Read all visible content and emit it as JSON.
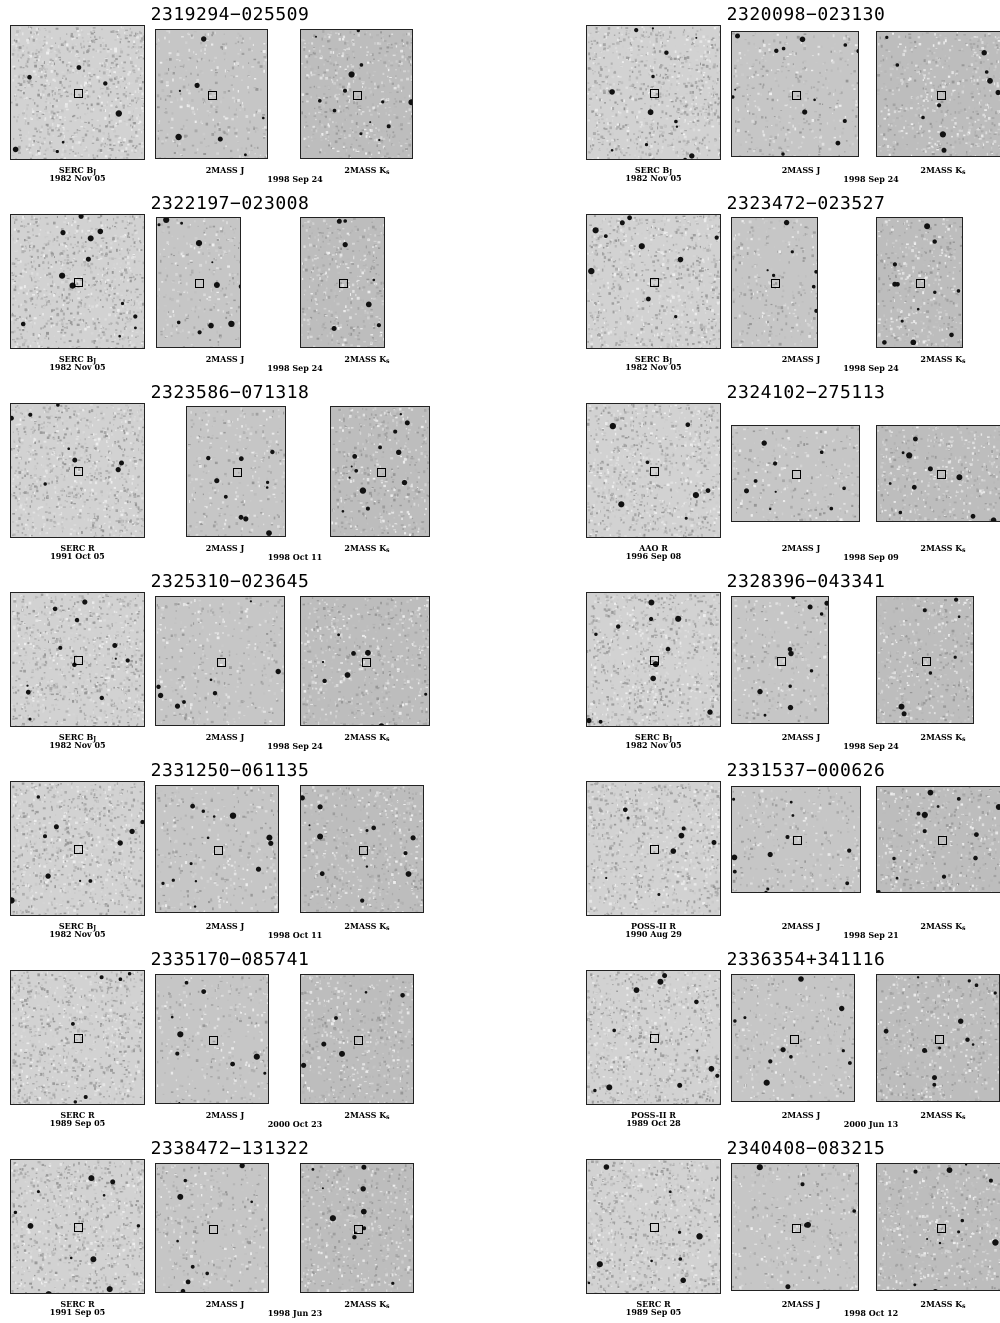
{
  "panels": [
    {
      "title": "2319294−025509",
      "dss_survey": "SERC B",
      "dss_sub": "J",
      "dss_date": "1982 Nov 05",
      "j_label": "2MASS J",
      "k_label": "2MASS K",
      "k_sub": "s",
      "tmass_date": "1998 Sep 24"
    },
    {
      "title": "2320098−023130",
      "dss_survey": "SERC B",
      "dss_sub": "J",
      "dss_date": "1982 Nov 05",
      "j_label": "2MASS J",
      "k_label": "2MASS K",
      "k_sub": "s",
      "tmass_date": "1998 Sep 24"
    },
    {
      "title": "2322197−023008",
      "dss_survey": "SERC B",
      "dss_sub": "J",
      "dss_date": "1982 Nov 05",
      "j_label": "2MASS J",
      "k_label": "2MASS K",
      "k_sub": "s",
      "tmass_date": "1998 Sep 24"
    },
    {
      "title": "2323472−023527",
      "dss_survey": "SERC B",
      "dss_sub": "J",
      "dss_date": "1982 Nov 05",
      "j_label": "2MASS J",
      "k_label": "2MASS K",
      "k_sub": "s",
      "tmass_date": "1998 Sep 24"
    },
    {
      "title": "2323586−071318",
      "dss_survey": "SERC R",
      "dss_sub": "",
      "dss_date": "1991 Oct 05",
      "j_label": "2MASS J",
      "k_label": "2MASS K",
      "k_sub": "s",
      "tmass_date": "1998 Oct 11"
    },
    {
      "title": "2324102−275113",
      "dss_survey": "AAO R",
      "dss_sub": "",
      "dss_date": "1996 Sep 08",
      "j_label": "2MASS J",
      "k_label": "2MASS K",
      "k_sub": "s",
      "tmass_date": "1998 Sep 09"
    },
    {
      "title": "2325310−023645",
      "dss_survey": "SERC B",
      "dss_sub": "J",
      "dss_date": "1982 Nov 05",
      "j_label": "2MASS J",
      "k_label": "2MASS K",
      "k_sub": "s",
      "tmass_date": "1998 Sep 24"
    },
    {
      "title": "2328396−043341",
      "dss_survey": "SERC B",
      "dss_sub": "J",
      "dss_date": "1982 Nov 05",
      "j_label": "2MASS J",
      "k_label": "2MASS K",
      "k_sub": "s",
      "tmass_date": "1998 Sep 24"
    },
    {
      "title": "2331250−061135",
      "dss_survey": "SERC B",
      "dss_sub": "J",
      "dss_date": "1982 Nov 05",
      "j_label": "2MASS J",
      "k_label": "2MASS K",
      "k_sub": "s",
      "tmass_date": "1998 Oct 11"
    },
    {
      "title": "2331537−000626",
      "dss_survey": "POSS-II R",
      "dss_sub": "",
      "dss_date": "1990 Aug 29",
      "j_label": "2MASS J",
      "k_label": "2MASS K",
      "k_sub": "s",
      "tmass_date": "1998 Sep 21"
    },
    {
      "title": "2335170−085741",
      "dss_survey": "SERC R",
      "dss_sub": "",
      "dss_date": "1989 Sep 05",
      "j_label": "2MASS J",
      "k_label": "2MASS K",
      "k_sub": "s",
      "tmass_date": "2000 Oct 23"
    },
    {
      "title": "2336354+341116",
      "dss_survey": "POSS-II R",
      "dss_sub": "",
      "dss_date": "1989 Oct 28",
      "j_label": "2MASS J",
      "k_label": "2MASS K",
      "k_sub": "s",
      "tmass_date": "2000 Jun 13"
    },
    {
      "title": "2338472−131322",
      "dss_survey": "SERC R",
      "dss_sub": "",
      "dss_date": "1991 Sep 05",
      "j_label": "2MASS J",
      "k_label": "2MASS K",
      "k_sub": "s",
      "tmass_date": "1998 Jun 23"
    },
    {
      "title": "2340408−083215",
      "dss_survey": "SERC R",
      "dss_sub": "",
      "dss_date": "1989 Sep 05",
      "j_label": "2MASS J",
      "k_label": "2MASS K",
      "k_sub": "s",
      "tmass_date": "1998 Oct 12"
    }
  ],
  "colors": {
    "dss_bg": "#d2d2d2",
    "j_bg": "#c6c6c6",
    "k_bg": "#bdbdbd",
    "star": "#111111",
    "frame": "#222222"
  }
}
